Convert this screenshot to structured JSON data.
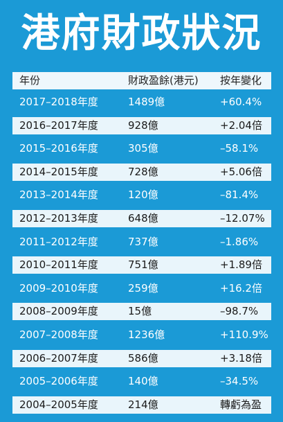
{
  "header": {
    "title": "港府財政狀況"
  },
  "table": {
    "columns": [
      "年份",
      "財政盈餘(港元)",
      "按年變化"
    ],
    "rows": [
      [
        "2017–2018年度",
        "1489億",
        "+60.4%"
      ],
      [
        "2016–2017年度",
        "928億",
        "+2.04倍"
      ],
      [
        "2015–2016年度",
        "305億",
        "–58.1%"
      ],
      [
        "2014–2015年度",
        "728億",
        "+5.06倍"
      ],
      [
        "2013–2014年度",
        "120億",
        "–81.4%"
      ],
      [
        "2012–2013年度",
        "648億",
        "–12.07%"
      ],
      [
        "2011–2012年度",
        "737億",
        "–1.86%"
      ],
      [
        "2010–2011年度",
        "751億",
        "+1.89倍"
      ],
      [
        "2009–2010年度",
        "259億",
        "+16.2倍"
      ],
      [
        "2008–2009年度",
        "15億",
        "–98.7%"
      ],
      [
        "2007–2008年度",
        "1236億",
        "+110.9%"
      ],
      [
        "2006–2007年度",
        "586億",
        "+3.18倍"
      ],
      [
        "2005–2006年度",
        "140億",
        "–34.5%"
      ],
      [
        "2004–2005年度",
        "214億",
        "轉虧為盈"
      ]
    ]
  }
}
